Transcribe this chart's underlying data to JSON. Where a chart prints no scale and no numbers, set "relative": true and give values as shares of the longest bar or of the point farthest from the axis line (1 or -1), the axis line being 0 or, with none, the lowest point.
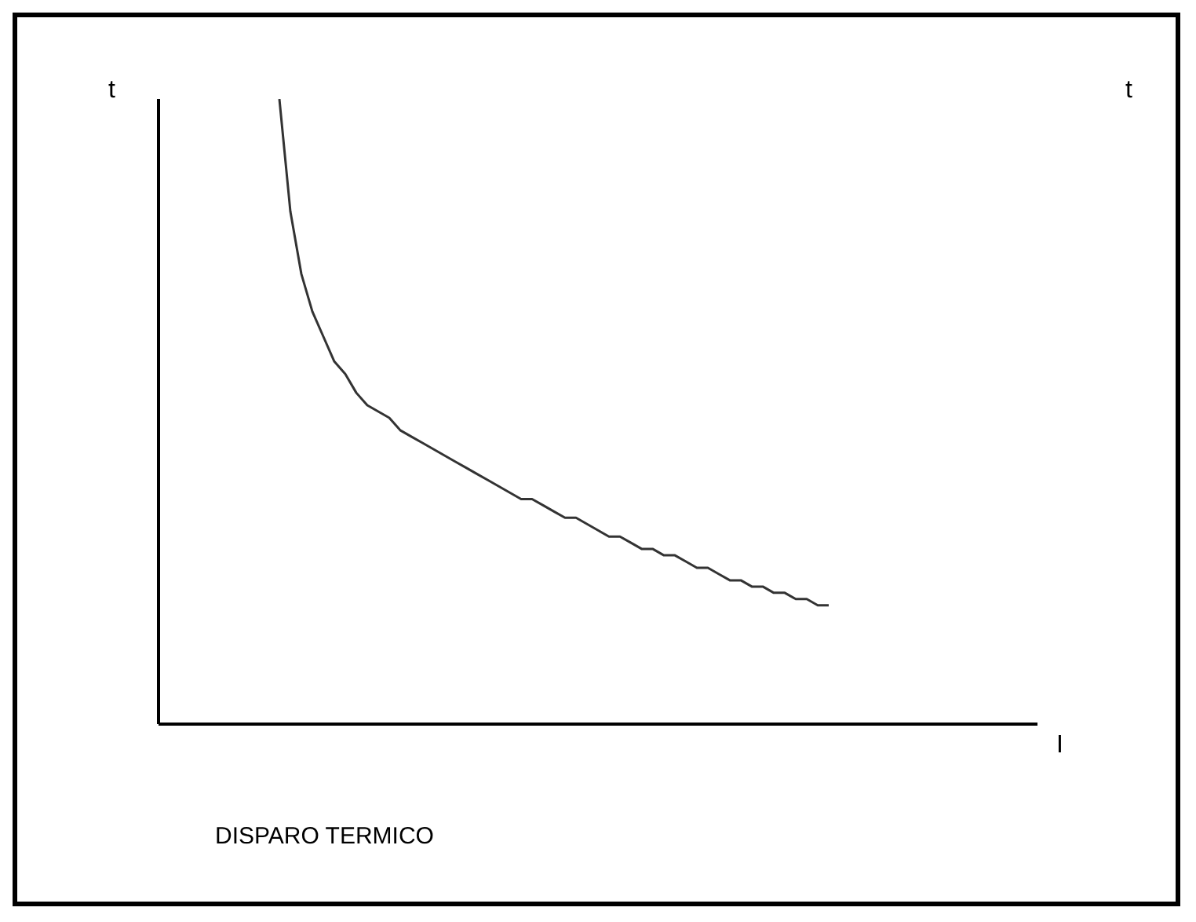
{
  "chart_data": {
    "type": "line",
    "title": "DISPARO TERMICO",
    "xlabel": "I",
    "ylabel": "t",
    "y2label": "t",
    "relative": true,
    "color": "#333333",
    "grid": false,
    "legend": false,
    "marker": "none",
    "line_style": "solid",
    "categories": [
      null,
      null,
      null,
      null,
      null,
      null,
      null,
      null,
      null,
      null,
      null,
      null,
      null,
      null,
      null,
      null,
      null,
      null,
      null,
      null,
      null,
      null,
      null,
      null,
      null,
      null,
      null,
      null,
      null,
      null,
      null,
      null,
      null,
      null,
      null,
      null,
      null,
      null,
      null,
      null,
      null,
      null,
      null,
      null,
      null,
      null,
      null,
      null,
      null,
      null,
      null,
      null,
      null,
      null,
      null,
      null,
      null,
      null,
      null,
      null,
      null,
      null,
      null,
      null,
      null,
      null,
      null,
      null,
      null,
      null,
      null,
      null,
      null,
      null,
      null,
      null,
      null,
      null,
      null,
      null,
      null
    ],
    "values": [
      null,
      null,
      null,
      null,
      null,
      null,
      null,
      null,
      null,
      null,
      null,
      1,
      0.82,
      0.72,
      0.66,
      0.62,
      0.58,
      0.56,
      0.53,
      0.51,
      0.5,
      0.49,
      0.47,
      0.46,
      0.45,
      0.44,
      0.43,
      0.42,
      0.41,
      0.4,
      0.39,
      0.38,
      0.37,
      0.36,
      0.36,
      0.35,
      0.34,
      0.33,
      0.33,
      0.32,
      0.31,
      0.3,
      0.3,
      0.29,
      0.28,
      0.28,
      0.27,
      0.27,
      0.26,
      0.25,
      0.25,
      0.24,
      0.23,
      0.23,
      0.22,
      0.22,
      0.21,
      0.21,
      0.2,
      0.2,
      0.19,
      0.19,
      null,
      null,
      null,
      null,
      null,
      null,
      null,
      null,
      null,
      null,
      null,
      null,
      null,
      null,
      null,
      null,
      null,
      null,
      null
    ]
  }
}
